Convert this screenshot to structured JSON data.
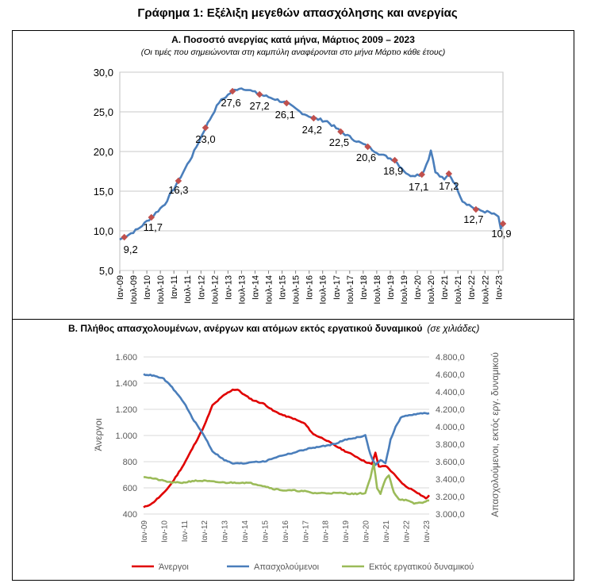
{
  "main_title": "Γράφημα 1: Εξέλιξη μεγεθών απασχόλησης και ανεργίας",
  "colors": {
    "unemployment_rate": "#4a7ebb",
    "marker": "#c0504d",
    "unemployed": "#e00000",
    "employed": "#4a7ebb",
    "out_of_labour": "#9bbb59",
    "grid": "#c8c8c8",
    "axis_text": "#000000",
    "axis_text_b": "#595959"
  },
  "chart_data": [
    {
      "type": "line",
      "title": "Α. Ποσοστό ανεργίας κατά μήνα, Μάρτιος 2009 – 2023",
      "subtitle": "(Οι τιμές που σημειώνονται στη καμπύλη αναφέρονται στο μήνα Μάρτιο κάθε έτους)",
      "ylim": [
        5.0,
        30.0
      ],
      "yticks": [
        "5,0",
        "10,0",
        "15,0",
        "20,0",
        "25,0",
        "30,0"
      ],
      "grid": true,
      "legend": "none",
      "x_tick_labels": [
        "Ιαν-09",
        "Ιουλ-09",
        "Ιαν-10",
        "Ιουλ-10",
        "Ιαν-11",
        "Ιουλ-11",
        "Ιαν-12",
        "Ιουλ-12",
        "Ιαν-13",
        "Ιουλ-13",
        "Ιαν-14",
        "Ιουλ-14",
        "Ιαν-15",
        "Ιουλ-15",
        "Ιαν-16",
        "Ιουλ-16",
        "Ιαν-17",
        "Ιουλ-17",
        "Ιαν-18",
        "Ιουλ-18",
        "Ιαν-19",
        "Ιουλ-19",
        "Ιαν-20",
        "Ιουλ-20",
        "Ιαν-21",
        "Ιουλ-21",
        "Ιαν-22",
        "Ιουλ-22",
        "Ιαν-23"
      ],
      "series_anchors": {
        "dates": [
          "2009-01",
          "2009-03",
          "2009-09",
          "2010-03",
          "2010-09",
          "2011-03",
          "2011-09",
          "2012-03",
          "2012-09",
          "2013-03",
          "2013-06",
          "2013-09",
          "2014-03",
          "2014-09",
          "2015-03",
          "2015-09",
          "2016-03",
          "2016-09",
          "2017-03",
          "2017-09",
          "2018-03",
          "2018-09",
          "2019-03",
          "2019-09",
          "2020-03",
          "2020-06",
          "2020-07",
          "2020-09",
          "2021-01",
          "2021-03",
          "2021-06",
          "2021-09",
          "2022-03",
          "2022-09",
          "2023-01",
          "2023-02",
          "2023-03"
        ],
        "values": [
          8.9,
          9.2,
          10.2,
          11.7,
          13.4,
          16.3,
          19.4,
          23.0,
          26.2,
          27.6,
          28.0,
          27.9,
          27.2,
          26.7,
          26.1,
          25.0,
          24.2,
          23.8,
          22.5,
          21.5,
          20.6,
          19.6,
          18.9,
          17.0,
          17.1,
          19.0,
          20.3,
          17.4,
          16.4,
          17.2,
          15.8,
          13.8,
          12.7,
          12.3,
          11.8,
          10.1,
          10.9
        ]
      },
      "march_labels": {
        "years": [
          "2009",
          "2010",
          "2011",
          "2012",
          "2013",
          "2014",
          "2015",
          "2016",
          "2017",
          "2018",
          "2019",
          "2020",
          "2021",
          "2022",
          "2023"
        ],
        "values": [
          9.2,
          11.7,
          16.3,
          23.0,
          27.6,
          27.2,
          26.1,
          24.2,
          22.5,
          20.6,
          18.9,
          17.1,
          17.2,
          12.7,
          10.9
        ],
        "text": [
          "9,2",
          "11,7",
          "16,3",
          "23,0",
          "27,6",
          "27,2",
          "26,1",
          "24,2",
          "22,5",
          "20,6",
          "18,9",
          "17,1",
          "17,2",
          "12,7",
          "10,9"
        ]
      }
    },
    {
      "type": "line",
      "title": "Β. Πλήθος απασχολουμένων, ανέργων και ατόμων εκτός εργατικού δυναμικού",
      "title_note": "(σε χιλιάδες)",
      "ylabel_left": "Άνεργοι",
      "ylabel_right": "Απασχολούμενοι, εκτός εργ. δυναμικού",
      "ylim_left": [
        400,
        1600
      ],
      "ylim_right": [
        3000,
        4800
      ],
      "yticks_left": [
        "400",
        "600",
        "800",
        "1.000",
        "1.200",
        "1.400",
        "1.600"
      ],
      "yticks_right": [
        "3.000,0",
        "3.200,0",
        "3.400,0",
        "3.600,0",
        "3.800,0",
        "4.000,0",
        "4.200,0",
        "4.400,0",
        "4.600,0",
        "4.800,0"
      ],
      "grid": true,
      "legend": "bottom",
      "x_tick_labels": [
        "Ιαν-09",
        "Ιαν-10",
        "Ιαν-11",
        "Ιαν-12",
        "Ιαν-13",
        "Ιαν-14",
        "Ιαν-15",
        "Ιαν-16",
        "Ιαν-17",
        "Ιαν-18",
        "Ιαν-19",
        "Ιαν-20",
        "Ιαν-21",
        "Ιαν-22",
        "Ιαν-23"
      ],
      "series": [
        {
          "name": "Άνεργοι",
          "axis": "left",
          "dates": [
            "2009-01",
            "2009-06",
            "2010-01",
            "2010-06",
            "2011-01",
            "2011-06",
            "2012-01",
            "2012-06",
            "2013-01",
            "2013-06",
            "2013-09",
            "2014-01",
            "2014-06",
            "2015-01",
            "2015-06",
            "2016-01",
            "2016-06",
            "2017-01",
            "2017-06",
            "2018-01",
            "2018-06",
            "2019-01",
            "2019-06",
            "2019-10",
            "2020-01",
            "2020-05",
            "2020-07",
            "2020-09",
            "2021-01",
            "2021-05",
            "2021-09",
            "2022-01",
            "2022-06",
            "2023-01",
            "2023-03"
          ],
          "values": [
            450,
            480,
            560,
            640,
            780,
            900,
            1070,
            1230,
            1310,
            1350,
            1350,
            1310,
            1270,
            1240,
            1190,
            1150,
            1130,
            1090,
            1010,
            970,
            930,
            880,
            850,
            820,
            800,
            780,
            870,
            760,
            770,
            720,
            660,
            610,
            580,
            520,
            540
          ]
        },
        {
          "name": "Απασχολούμενοι",
          "axis": "right",
          "dates": [
            "2009-01",
            "2009-06",
            "2010-01",
            "2010-06",
            "2011-01",
            "2011-06",
            "2012-01",
            "2012-06",
            "2013-01",
            "2013-06",
            "2014-01",
            "2014-06",
            "2015-01",
            "2015-06",
            "2016-01",
            "2016-06",
            "2017-01",
            "2017-06",
            "2018-01",
            "2018-06",
            "2019-01",
            "2019-06",
            "2020-01",
            "2020-04",
            "2020-07",
            "2020-10",
            "2021-01",
            "2021-04",
            "2021-07",
            "2021-10",
            "2022-01",
            "2022-06",
            "2023-01",
            "2023-03"
          ],
          "values": [
            4600,
            4590,
            4550,
            4450,
            4280,
            4100,
            3900,
            3720,
            3620,
            3580,
            3580,
            3600,
            3600,
            3640,
            3680,
            3700,
            3740,
            3760,
            3780,
            3800,
            3850,
            3870,
            3900,
            3680,
            3560,
            3620,
            3580,
            3850,
            4000,
            4100,
            4130,
            4140,
            4160,
            4150
          ]
        },
        {
          "name": "Εκτός εργατικού δυναμικού",
          "axis": "right",
          "dates": [
            "2009-01",
            "2009-06",
            "2010-01",
            "2010-06",
            "2011-01",
            "2011-06",
            "2012-01",
            "2012-06",
            "2013-01",
            "2013-06",
            "2014-01",
            "2014-06",
            "2015-01",
            "2015-06",
            "2016-01",
            "2016-06",
            "2017-01",
            "2017-06",
            "2018-01",
            "2018-06",
            "2019-01",
            "2019-06",
            "2020-01",
            "2020-04",
            "2020-06",
            "2020-08",
            "2020-10",
            "2021-01",
            "2021-03",
            "2021-06",
            "2021-09",
            "2022-01",
            "2022-06",
            "2023-01",
            "2023-03"
          ],
          "values": [
            3430,
            3410,
            3380,
            3360,
            3360,
            3380,
            3380,
            3370,
            3360,
            3360,
            3360,
            3350,
            3320,
            3290,
            3270,
            3270,
            3260,
            3240,
            3240,
            3240,
            3240,
            3230,
            3240,
            3420,
            3580,
            3300,
            3230,
            3400,
            3440,
            3250,
            3170,
            3160,
            3120,
            3140,
            3160
          ]
        }
      ]
    }
  ]
}
